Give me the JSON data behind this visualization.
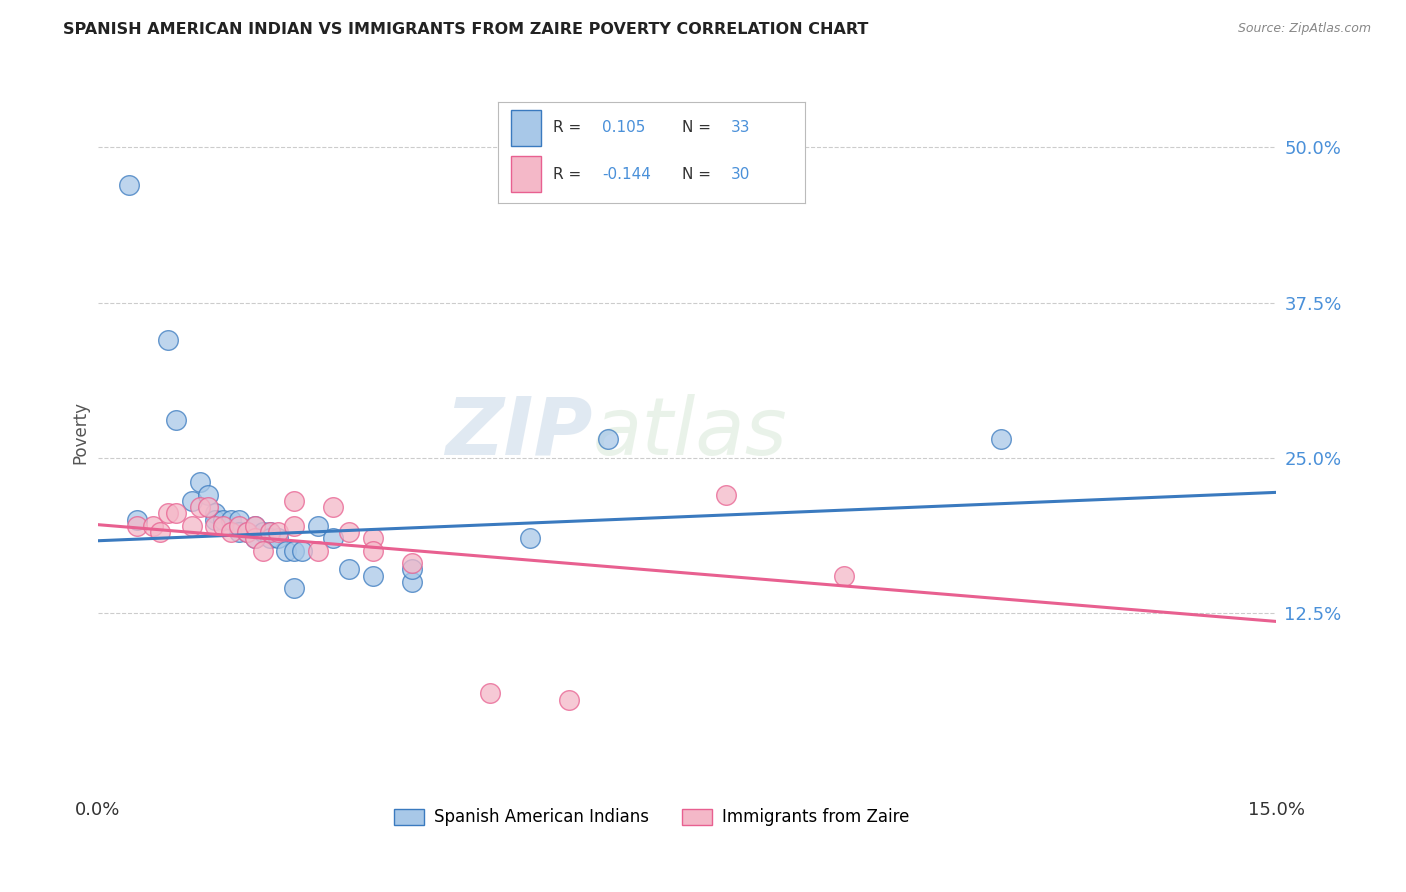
{
  "title": "SPANISH AMERICAN INDIAN VS IMMIGRANTS FROM ZAIRE POVERTY CORRELATION CHART",
  "source": "Source: ZipAtlas.com",
  "ylabel": "Poverty",
  "ytick_labels": [
    "12.5%",
    "25.0%",
    "37.5%",
    "50.0%"
  ],
  "ytick_values": [
    0.125,
    0.25,
    0.375,
    0.5
  ],
  "xlim": [
    0.0,
    0.15
  ],
  "ylim": [
    -0.02,
    0.56
  ],
  "watermark_zip": "ZIP",
  "watermark_atlas": "atlas",
  "color_blue": "#a8c8e8",
  "color_pink": "#f4b8c8",
  "color_blue_line": "#3a7abf",
  "color_pink_line": "#e86090",
  "grid_color": "#cccccc",
  "background_color": "#ffffff",
  "label1": "Spanish American Indians",
  "label2": "Immigrants from Zaire",
  "blue_scatter_x": [
    0.004,
    0.009,
    0.01,
    0.012,
    0.013,
    0.014,
    0.015,
    0.015,
    0.016,
    0.017,
    0.018,
    0.018,
    0.019,
    0.02,
    0.02,
    0.021,
    0.022,
    0.022,
    0.023,
    0.024,
    0.025,
    0.025,
    0.026,
    0.028,
    0.03,
    0.032,
    0.035,
    0.04,
    0.04,
    0.055,
    0.065,
    0.115,
    0.005
  ],
  "blue_scatter_y": [
    0.47,
    0.345,
    0.28,
    0.215,
    0.23,
    0.22,
    0.205,
    0.2,
    0.2,
    0.2,
    0.2,
    0.19,
    0.19,
    0.185,
    0.195,
    0.19,
    0.19,
    0.185,
    0.185,
    0.175,
    0.175,
    0.145,
    0.175,
    0.195,
    0.185,
    0.16,
    0.155,
    0.15,
    0.16,
    0.185,
    0.265,
    0.265,
    0.2
  ],
  "pink_scatter_x": [
    0.005,
    0.007,
    0.008,
    0.009,
    0.01,
    0.012,
    0.013,
    0.014,
    0.015,
    0.016,
    0.017,
    0.018,
    0.019,
    0.02,
    0.02,
    0.021,
    0.022,
    0.023,
    0.025,
    0.025,
    0.028,
    0.03,
    0.032,
    0.035,
    0.035,
    0.04,
    0.05,
    0.06,
    0.08,
    0.095
  ],
  "pink_scatter_y": [
    0.195,
    0.195,
    0.19,
    0.205,
    0.205,
    0.195,
    0.21,
    0.21,
    0.195,
    0.195,
    0.19,
    0.195,
    0.19,
    0.185,
    0.195,
    0.175,
    0.19,
    0.19,
    0.215,
    0.195,
    0.175,
    0.21,
    0.19,
    0.185,
    0.175,
    0.165,
    0.06,
    0.055,
    0.22,
    0.155
  ],
  "blue_line_x": [
    0.0,
    0.15
  ],
  "blue_line_y": [
    0.183,
    0.222
  ],
  "pink_line_x": [
    0.0,
    0.15
  ],
  "pink_line_y": [
    0.196,
    0.118
  ]
}
